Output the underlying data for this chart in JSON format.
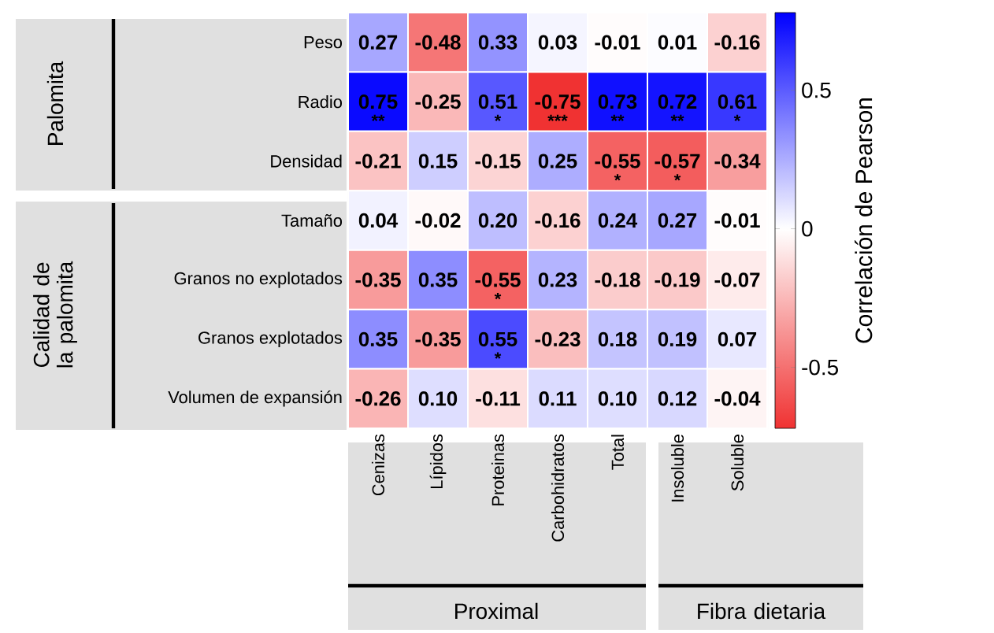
{
  "chart_data": {
    "type": "heatmap",
    "clabel": "Correlación de Pearson",
    "categories": [
      "Cenizas",
      "Lípidos",
      "Proteinas",
      "Carbohidratos",
      "Total",
      "Insoluble",
      "Soluble"
    ],
    "y_categories": [
      "Peso",
      "Radio",
      "Densidad",
      "Tamaño",
      "Granos no explotados",
      "Granos explotados",
      "Volumen de expansión"
    ],
    "cells": [
      [
        0.27,
        -0.48,
        0.33,
        0.03,
        -0.01,
        0.01,
        -0.16
      ],
      [
        0.75,
        -0.25,
        0.51,
        -0.75,
        0.73,
        0.72,
        0.61
      ],
      [
        -0.21,
        0.15,
        -0.15,
        0.25,
        -0.55,
        -0.57,
        -0.34
      ],
      [
        0.04,
        -0.02,
        0.2,
        -0.16,
        0.24,
        0.27,
        -0.01
      ],
      [
        -0.35,
        0.35,
        -0.55,
        0.23,
        -0.18,
        -0.19,
        -0.07
      ],
      [
        0.35,
        -0.35,
        0.55,
        -0.23,
        0.18,
        0.19,
        0.07
      ],
      [
        -0.26,
        0.1,
        -0.11,
        0.11,
        0.1,
        0.12,
        -0.04
      ]
    ],
    "cell_labels": [
      [
        "0.27",
        "-0.48",
        "0.33",
        "0.03",
        "-0.01",
        "0.01",
        "-0.16"
      ],
      [
        "0.75",
        "-0.25",
        "0.51",
        "-0.75",
        "0.73",
        "0.72",
        "0.61"
      ],
      [
        "-0.21",
        "0.15",
        "-0.15",
        "0.25",
        "-0.55",
        "-0.57",
        "-0.34"
      ],
      [
        "0.04",
        "-0.02",
        "0.20",
        "-0.16",
        "0.24",
        "0.27",
        "-0.01"
      ],
      [
        "-0.35",
        "0.35",
        "-0.55",
        "0.23",
        "-0.18",
        "-0.19",
        "-0.07"
      ],
      [
        "0.35",
        "-0.35",
        "0.55",
        "-0.23",
        "0.18",
        "0.19",
        "0.07"
      ],
      [
        "-0.26",
        "0.10",
        "-0.11",
        "0.11",
        "0.10",
        "0.12",
        "-0.04"
      ]
    ],
    "clim": [
      -0.72,
      0.78
    ],
    "cticks": [
      -0.5,
      0,
      0.5
    ],
    "annotations": [
      "Palomita",
      "Calidad de la palomita",
      "Proximal",
      "Fibra dietaria",
      "**",
      "*",
      "***",
      "**",
      "**",
      "*",
      "*",
      "*",
      "*",
      "*"
    ]
  }
}
